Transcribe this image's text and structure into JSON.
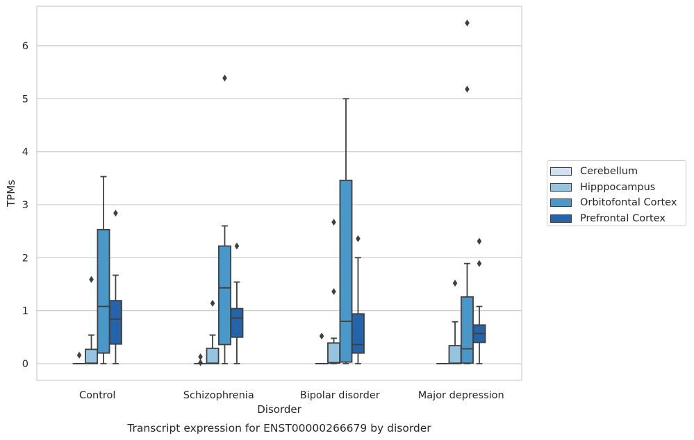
{
  "chart_data": {
    "type": "box",
    "title": "Transcript expression for ENST00000266679 by disorder",
    "xlabel": "Disorder",
    "ylabel": "TPMs",
    "ylim": [
      -0.3,
      6.75
    ],
    "yticks": [
      0,
      1,
      2,
      3,
      4,
      5,
      6
    ],
    "categories": [
      "Control",
      "Schizophrenia",
      "Bipolar disorder",
      "Major depression"
    ],
    "grid": "horizontal",
    "legend_position": "right",
    "series": [
      {
        "name": "Cerebellum",
        "color": "#d0e1f2",
        "boxes": [
          {
            "whisker_low": 0,
            "q1": 0,
            "median": 0,
            "q3": 0,
            "whisker_high": 0,
            "outliers": [
              0.16
            ]
          },
          {
            "whisker_low": 0,
            "q1": 0,
            "median": 0,
            "q3": 0,
            "whisker_high": 0,
            "outliers": [
              0.02,
              0.13
            ]
          },
          {
            "whisker_low": 0,
            "q1": 0,
            "median": 0,
            "q3": 0,
            "whisker_high": 0,
            "outliers": [
              0.52
            ]
          },
          {
            "whisker_low": 0,
            "q1": 0,
            "median": 0,
            "q3": 0,
            "whisker_high": 0,
            "outliers": []
          }
        ]
      },
      {
        "name": "Hipppocampus",
        "color": "#94c4df",
        "boxes": [
          {
            "whisker_low": 0,
            "q1": 0,
            "median": 0.01,
            "q3": 0.27,
            "whisker_high": 0.54,
            "outliers": [
              1.59
            ]
          },
          {
            "whisker_low": 0,
            "q1": 0,
            "median": 0.01,
            "q3": 0.29,
            "whisker_high": 0.54,
            "outliers": [
              1.14
            ]
          },
          {
            "whisker_low": 0,
            "q1": 0.01,
            "median": 0.02,
            "q3": 0.39,
            "whisker_high": 0.48,
            "outliers": [
              1.36,
              2.67
            ]
          },
          {
            "whisker_low": 0,
            "q1": 0,
            "median": 0.01,
            "q3": 0.34,
            "whisker_high": 0.79,
            "outliers": [
              1.52
            ]
          }
        ]
      },
      {
        "name": "Orbitofontal Cortex",
        "color": "#4a98c9",
        "boxes": [
          {
            "whisker_low": 0,
            "q1": 0.2,
            "median": 1.08,
            "q3": 2.53,
            "whisker_high": 3.53,
            "outliers": []
          },
          {
            "whisker_low": 0,
            "q1": 0.36,
            "median": 1.43,
            "q3": 2.22,
            "whisker_high": 2.6,
            "outliers": [
              5.39
            ]
          },
          {
            "whisker_low": 0,
            "q1": 0.03,
            "median": 0.8,
            "q3": 3.46,
            "whisker_high": 5.0,
            "outliers": []
          },
          {
            "whisker_low": 0,
            "q1": 0.01,
            "median": 0.28,
            "q3": 1.26,
            "whisker_high": 1.89,
            "outliers": [
              5.18,
              6.43
            ]
          }
        ]
      },
      {
        "name": "Prefrontal Cortex",
        "color": "#2564a9",
        "boxes": [
          {
            "whisker_low": 0,
            "q1": 0.37,
            "median": 0.84,
            "q3": 1.19,
            "whisker_high": 1.67,
            "outliers": [
              2.84
            ]
          },
          {
            "whisker_low": 0,
            "q1": 0.5,
            "median": 0.86,
            "q3": 1.04,
            "whisker_high": 1.54,
            "outliers": [
              2.22
            ]
          },
          {
            "whisker_low": 0,
            "q1": 0.2,
            "median": 0.36,
            "q3": 0.94,
            "whisker_high": 2.0,
            "outliers": [
              2.36
            ]
          },
          {
            "whisker_low": 0,
            "q1": 0.4,
            "median": 0.57,
            "q3": 0.73,
            "whisker_high": 1.08,
            "outliers": [
              1.89,
              2.31
            ]
          }
        ]
      }
    ]
  }
}
